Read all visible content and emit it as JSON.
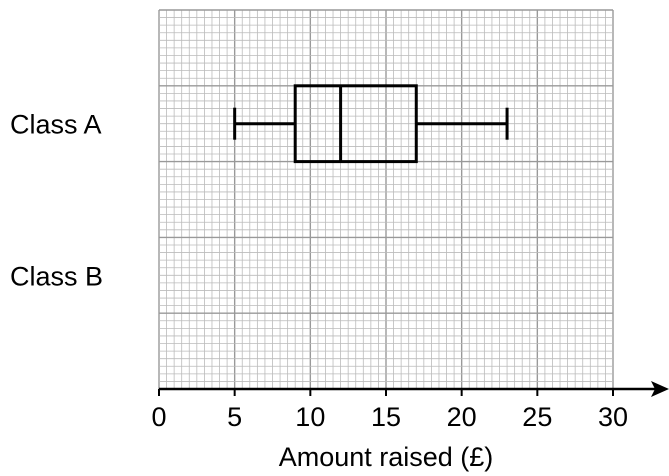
{
  "chart_data": {
    "type": "boxplot",
    "xlabel": "Amount raised (£)",
    "xlim": [
      0,
      30
    ],
    "x_ticks": [
      0,
      5,
      10,
      15,
      20,
      25,
      30
    ],
    "x_tick_labels": [
      "0",
      "5",
      "10",
      "15",
      "20",
      "25",
      "30"
    ],
    "grid": true,
    "categories": [
      "Class A",
      "Class B"
    ],
    "series": [
      {
        "name": "Class A",
        "min": 5,
        "q1": 9,
        "median": 12,
        "q3": 17,
        "max": 23
      }
    ],
    "colors": {
      "grid_major": "#999999",
      "grid_minor": "#bbbbbb",
      "ink": "#000000"
    }
  }
}
